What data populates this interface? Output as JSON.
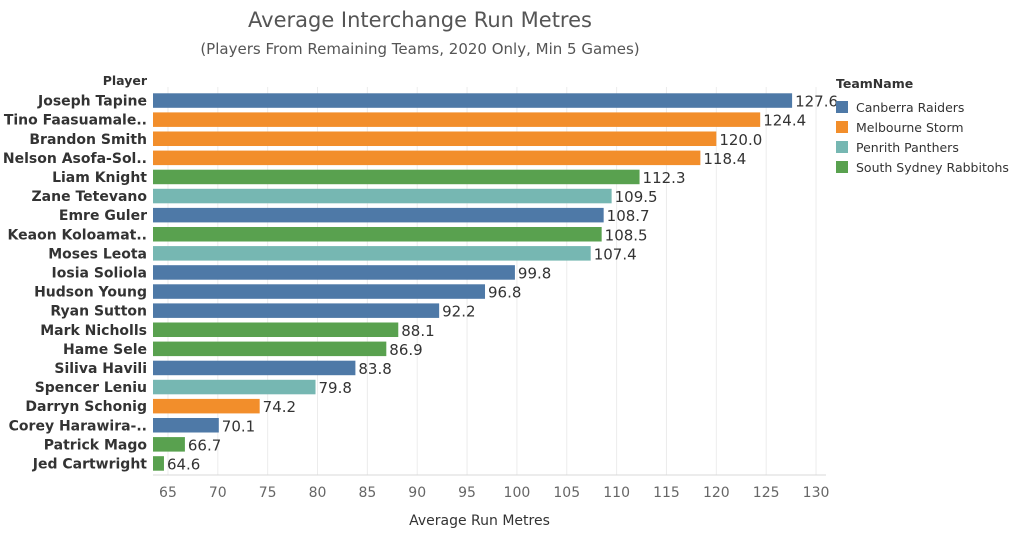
{
  "chart_data": {
    "type": "bar",
    "orientation": "horizontal",
    "title": "Average Interchange Run Metres",
    "subtitle": "(Players From Remaining Teams, 2020 Only, Min 5 Games)",
    "row_header": "Player",
    "xlabel": "Average Run Metres",
    "xlim": [
      63.5,
      131
    ],
    "xticks": [
      65,
      70,
      75,
      80,
      85,
      90,
      95,
      100,
      105,
      110,
      115,
      120,
      125,
      130
    ],
    "grid": true,
    "legend": {
      "title": "TeamName",
      "placement": "right",
      "items": [
        {
          "name": "Canberra Raiders",
          "color": "#4e79a7"
        },
        {
          "name": "Melbourne Storm",
          "color": "#f28e2b"
        },
        {
          "name": "Penrith Panthers",
          "color": "#76b7b2"
        },
        {
          "name": "South Sydney Rabbitohs",
          "color": "#59a14f"
        }
      ]
    },
    "bars": [
      {
        "player": "Joseph Tapine",
        "team": "Canberra Raiders",
        "value": 127.6
      },
      {
        "player": "Tino Faasuamale..",
        "team": "Melbourne Storm",
        "value": 124.4
      },
      {
        "player": "Brandon Smith",
        "team": "Melbourne Storm",
        "value": 120.0
      },
      {
        "player": "Nelson Asofa-Sol..",
        "team": "Melbourne Storm",
        "value": 118.4
      },
      {
        "player": "Liam Knight",
        "team": "South Sydney Rabbitohs",
        "value": 112.3
      },
      {
        "player": "Zane Tetevano",
        "team": "Penrith Panthers",
        "value": 109.5
      },
      {
        "player": "Emre Guler",
        "team": "Canberra Raiders",
        "value": 108.7
      },
      {
        "player": "Keaon Koloamat..",
        "team": "South Sydney Rabbitohs",
        "value": 108.5
      },
      {
        "player": "Moses Leota",
        "team": "Penrith Panthers",
        "value": 107.4
      },
      {
        "player": "Iosia Soliola",
        "team": "Canberra Raiders",
        "value": 99.8
      },
      {
        "player": "Hudson Young",
        "team": "Canberra Raiders",
        "value": 96.8
      },
      {
        "player": "Ryan Sutton",
        "team": "Canberra Raiders",
        "value": 92.2
      },
      {
        "player": "Mark Nicholls",
        "team": "South Sydney Rabbitohs",
        "value": 88.1
      },
      {
        "player": "Hame Sele",
        "team": "South Sydney Rabbitohs",
        "value": 86.9
      },
      {
        "player": "Siliva Havili",
        "team": "Canberra Raiders",
        "value": 83.8
      },
      {
        "player": "Spencer Leniu",
        "team": "Penrith Panthers",
        "value": 79.8
      },
      {
        "player": "Darryn Schonig",
        "team": "Melbourne Storm",
        "value": 74.2
      },
      {
        "player": "Corey Harawira-..",
        "team": "Canberra Raiders",
        "value": 70.1
      },
      {
        "player": "Patrick Mago",
        "team": "South Sydney Rabbitohs",
        "value": 66.7
      },
      {
        "player": "Jed Cartwright",
        "team": "South Sydney Rabbitohs",
        "value": 64.6
      }
    ]
  }
}
